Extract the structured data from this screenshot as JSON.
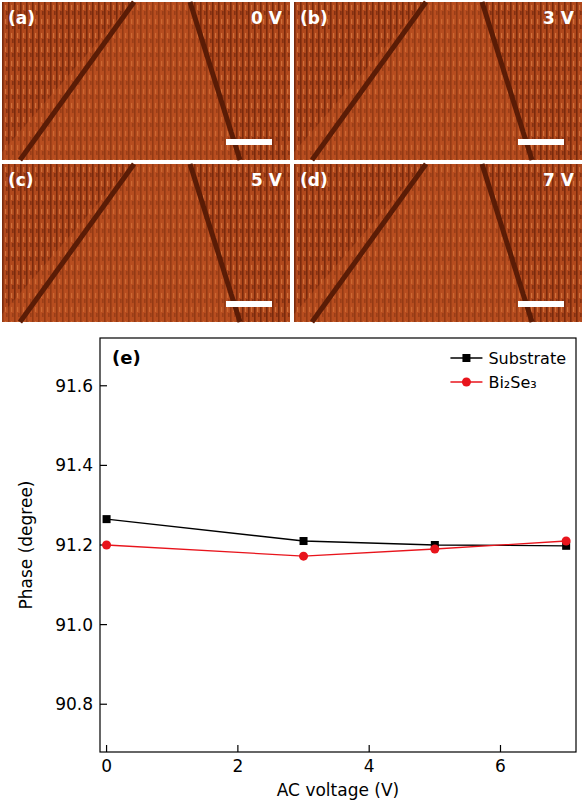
{
  "panels": [
    {
      "label": "(a)",
      "voltage": "0 V"
    },
    {
      "label": "(b)",
      "voltage": "3 V"
    },
    {
      "label": "(c)",
      "voltage": "5 V"
    },
    {
      "label": "(d)",
      "voltage": "7 V"
    }
  ],
  "chart_data": {
    "type": "line",
    "title": "(e)",
    "x_label": "AC voltage (V)",
    "y_label": "Phase (degree)",
    "x": [
      0,
      3,
      5,
      7
    ],
    "series": [
      {
        "name": "Substrate",
        "color": "#000000",
        "marker": "square",
        "values": [
          91.265,
          91.21,
          91.2,
          91.198
        ]
      },
      {
        "name": "Bi₂Se₃",
        "color": "#e8141c",
        "marker": "circle",
        "values": [
          91.2,
          91.172,
          91.19,
          91.21
        ]
      }
    ],
    "xlim": [
      -0.1,
      7.15
    ],
    "xticks": [
      0,
      2,
      4,
      6
    ],
    "ylim": [
      90.68,
      91.72
    ],
    "yticks": [
      {
        "value": 90.8,
        "label": "90.8"
      },
      {
        "value": 91.0,
        "label": "91.0"
      },
      {
        "value": 91.2,
        "label": "91.2"
      },
      {
        "value": 91.4,
        "label": "91.4"
      },
      {
        "value": 91.6,
        "label": "91.6"
      }
    ],
    "legend": "upper right",
    "grid": false
  }
}
